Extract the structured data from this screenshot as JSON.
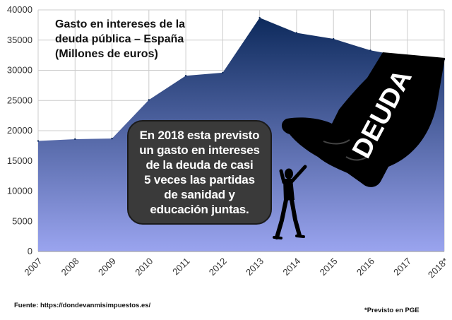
{
  "chart_data": {
    "type": "area",
    "title": "Gasto en intereses de la\ndeuda pública – España\n(Millones de euros)",
    "x": [
      "2007",
      "2008",
      "2009",
      "2010",
      "2011",
      "2012",
      "2013",
      "2014",
      "2015",
      "2016",
      "2017",
      "2018*"
    ],
    "values": [
      18300,
      18600,
      18700,
      25100,
      29100,
      29600,
      38700,
      36200,
      35200,
      33300,
      32200,
      31800
    ],
    "ylim": [
      0,
      40000
    ],
    "yticks": [
      "0",
      "5000",
      "10000",
      "15000",
      "20000",
      "25000",
      "30000",
      "35000",
      "40000"
    ],
    "grid": true,
    "legend": "none",
    "colors": {
      "area_top": "#0d2a5c",
      "area_bottom": "#9aa4ef",
      "grid": "#cccccc"
    }
  },
  "illustration": {
    "hand_label": "DEUDA",
    "icons": [
      "fist-icon",
      "person-icon"
    ]
  },
  "callout": {
    "text": "En 2018 esta previsto\nun gasto en intereses\nde la deuda de casi\n5 veces las partidas\nde sanidad y\neducación juntas."
  },
  "footer": {
    "source": "Fuente: https://dondevanmisimpuestos.es/",
    "note": "*Previsto en PGE"
  }
}
